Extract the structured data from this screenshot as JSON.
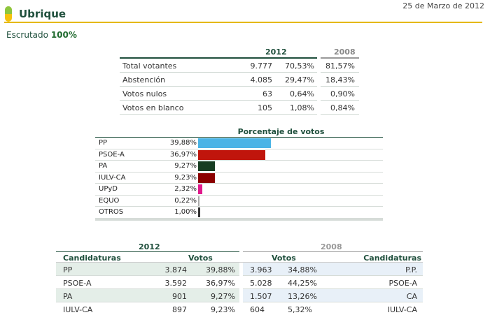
{
  "header": {
    "date": "25 de Marzo de 2012",
    "title": "Ubrique",
    "accent_color": "#e5b80b",
    "logo_icon": "pill-logo-icon"
  },
  "scrutiny": {
    "label": "Escrutado",
    "value": "100%"
  },
  "summary": {
    "year_current": "2012",
    "year_previous": "2008",
    "rows": [
      {
        "label": "Total votantes",
        "number": "9.777",
        "pct": "70,53%",
        "pct_prev": "81,57%"
      },
      {
        "label": "Abstención",
        "number": "4.085",
        "pct": "29,47%",
        "pct_prev": "18,43%"
      },
      {
        "label": "Votos nulos",
        "number": "63",
        "pct": "0,64%",
        "pct_prev": "0,90%"
      },
      {
        "label": "Votos en blanco",
        "number": "105",
        "pct": "1,08%",
        "pct_prev": "0,84%"
      }
    ]
  },
  "chart_data": {
    "type": "bar",
    "title": "Porcentaje de votos",
    "categories": [
      "PP",
      "PSOE-A",
      "PA",
      "IULV-CA",
      "UPyD",
      "EQUO",
      "OTROS"
    ],
    "values": [
      39.88,
      36.97,
      9.27,
      9.23,
      2.32,
      0.22,
      1.0
    ],
    "labels": [
      "39,88%",
      "36,97%",
      "9,27%",
      "9,23%",
      "2,32%",
      "0,22%",
      "1,00%"
    ],
    "colors": [
      "#4ab4e6",
      "#c0150c",
      "#163d22",
      "#8b0000",
      "#e0198c",
      "#aaaaaa",
      "#333333"
    ],
    "xlim": [
      0,
      100
    ],
    "ylabel": "",
    "xlabel": ""
  },
  "candidates": {
    "year_current": "2012",
    "year_previous": "2008",
    "col_candidaturas": "Candidaturas",
    "col_votos": "Votos",
    "col_votos_prev": "Votos",
    "col_candidaturas_prev": "Candidaturas",
    "rows": [
      {
        "name": "PP",
        "votes": "3.874",
        "pct": "39,88%",
        "votes_prev": "3.963",
        "pct_prev": "34,88%",
        "name_prev": "P.P."
      },
      {
        "name": "PSOE-A",
        "votes": "3.592",
        "pct": "36,97%",
        "votes_prev": "5.028",
        "pct_prev": "44,25%",
        "name_prev": "PSOE-A"
      },
      {
        "name": "PA",
        "votes": "901",
        "pct": "9,27%",
        "votes_prev": "1.507",
        "pct_prev": "13,26%",
        "name_prev": "CA"
      },
      {
        "name": "IULV-CA",
        "votes": "897",
        "pct": "9,23%",
        "votes_prev": "604",
        "pct_prev": "5,32%",
        "name_prev": "IULV-CA"
      }
    ]
  }
}
